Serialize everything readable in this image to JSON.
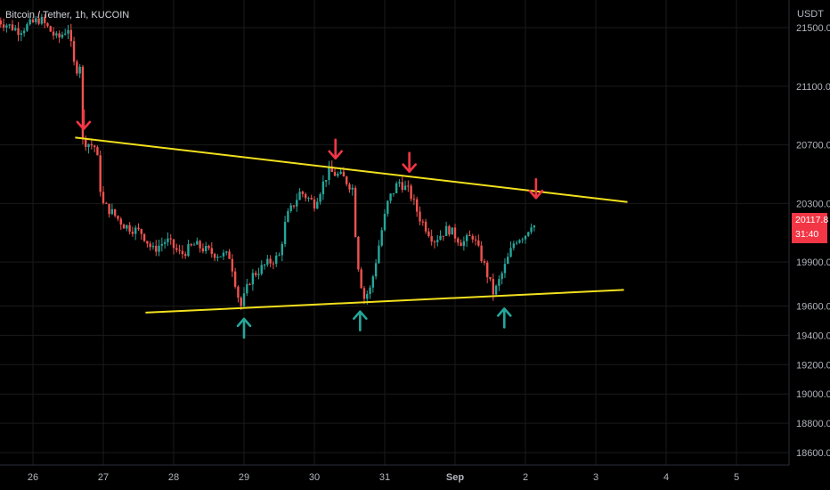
{
  "chart_data": {
    "type": "candlestick",
    "title": "Bitcoin / Tether, 1h, KUCOIN",
    "currency": "USDT",
    "ylim": [
      18500,
      21600
    ],
    "y_ticks": [
      {
        "value": 21500,
        "label": "21500.0"
      },
      {
        "value": 21100,
        "label": "21100.0"
      },
      {
        "value": 20700,
        "label": "20700.0"
      },
      {
        "value": 20300,
        "label": "20300.0"
      },
      {
        "value": 19900,
        "label": "19900.0"
      },
      {
        "value": 19600,
        "label": "19600.0"
      },
      {
        "value": 19400,
        "label": "19400.0"
      },
      {
        "value": 19200,
        "label": "19200.0"
      },
      {
        "value": 19000,
        "label": "19000.0"
      },
      {
        "value": 18800,
        "label": "18800.0"
      },
      {
        "value": 18600,
        "label": "18600.0"
      }
    ],
    "x_ticks": [
      {
        "day": 0,
        "label": "26"
      },
      {
        "day": 1,
        "label": "27"
      },
      {
        "day": 2,
        "label": "28"
      },
      {
        "day": 3,
        "label": "29"
      },
      {
        "day": 4,
        "label": "30"
      },
      {
        "day": 5,
        "label": "31"
      },
      {
        "day": 6,
        "label": "Sep"
      },
      {
        "day": 7,
        "label": "2"
      },
      {
        "day": 8,
        "label": "3"
      },
      {
        "day": 9,
        "label": "4"
      },
      {
        "day": 10,
        "label": "5"
      }
    ],
    "last_price": {
      "value": 20117.8,
      "label": "20117.8",
      "countdown": "31:40"
    },
    "candle_path": [
      [
        -0.5,
        21550
      ],
      [
        -0.2,
        21480
      ],
      [
        0.1,
        21560
      ],
      [
        0.35,
        21420
      ],
      [
        0.5,
        21500
      ],
      [
        0.6,
        21200
      ],
      [
        0.7,
        21280
      ],
      [
        0.62,
        20750
      ],
      [
        0.75,
        20720
      ],
      [
        0.9,
        20680
      ],
      [
        0.98,
        20300
      ],
      [
        1.1,
        20250
      ],
      [
        1.3,
        20150
      ],
      [
        1.55,
        20100
      ],
      [
        1.7,
        19980
      ],
      [
        1.9,
        20050
      ],
      [
        2.1,
        19950
      ],
      [
        2.3,
        20020
      ],
      [
        2.55,
        19960
      ],
      [
        2.8,
        19940
      ],
      [
        2.95,
        19590
      ],
      [
        3.1,
        19800
      ],
      [
        3.3,
        19880
      ],
      [
        3.5,
        19940
      ],
      [
        3.6,
        20200
      ],
      [
        3.8,
        20380
      ],
      [
        4.0,
        20300
      ],
      [
        4.2,
        20520
      ],
      [
        4.4,
        20480
      ],
      [
        4.55,
        20400
      ],
      [
        4.6,
        19950
      ],
      [
        4.7,
        19650
      ],
      [
        4.8,
        19720
      ],
      [
        4.95,
        20100
      ],
      [
        5.05,
        20320
      ],
      [
        5.2,
        20450
      ],
      [
        5.35,
        20380
      ],
      [
        5.5,
        20200
      ],
      [
        5.7,
        20050
      ],
      [
        5.9,
        20130
      ],
      [
        6.1,
        20030
      ],
      [
        6.25,
        20080
      ],
      [
        6.4,
        19900
      ],
      [
        6.55,
        19680
      ],
      [
        6.7,
        19860
      ],
      [
        6.85,
        20050
      ],
      [
        7.0,
        20090
      ],
      [
        7.1,
        20180
      ],
      [
        7.15,
        20117.8
      ]
    ],
    "trendlines": [
      {
        "name": "resistance",
        "from": [
          0.6,
          20750
        ],
        "to": [
          8.45,
          20310
        ],
        "color": "#f2e01d"
      },
      {
        "name": "support",
        "from": [
          1.6,
          19555
        ],
        "to": [
          8.4,
          19710
        ],
        "color": "#f2e01d"
      }
    ],
    "annotations": [
      {
        "type": "arrow-down",
        "day": 0.72,
        "price": 20850,
        "color": "#f23645"
      },
      {
        "type": "arrow-down",
        "day": 4.3,
        "price": 20650,
        "color": "#f23645"
      },
      {
        "type": "arrow-down",
        "day": 5.35,
        "price": 20560,
        "color": "#f23645"
      },
      {
        "type": "arrow-down",
        "day": 7.15,
        "price": 20380,
        "color": "#f23645"
      },
      {
        "type": "arrow-up",
        "day": 3.0,
        "price": 19470,
        "color": "#26a69a"
      },
      {
        "type": "arrow-up",
        "day": 4.65,
        "price": 19520,
        "color": "#26a69a"
      },
      {
        "type": "arrow-up",
        "day": 6.7,
        "price": 19540,
        "color": "#26a69a"
      }
    ],
    "colors": {
      "up": "#26a69a",
      "down": "#ef5350",
      "background": "#000000",
      "grid": "#1a1a1a"
    }
  }
}
